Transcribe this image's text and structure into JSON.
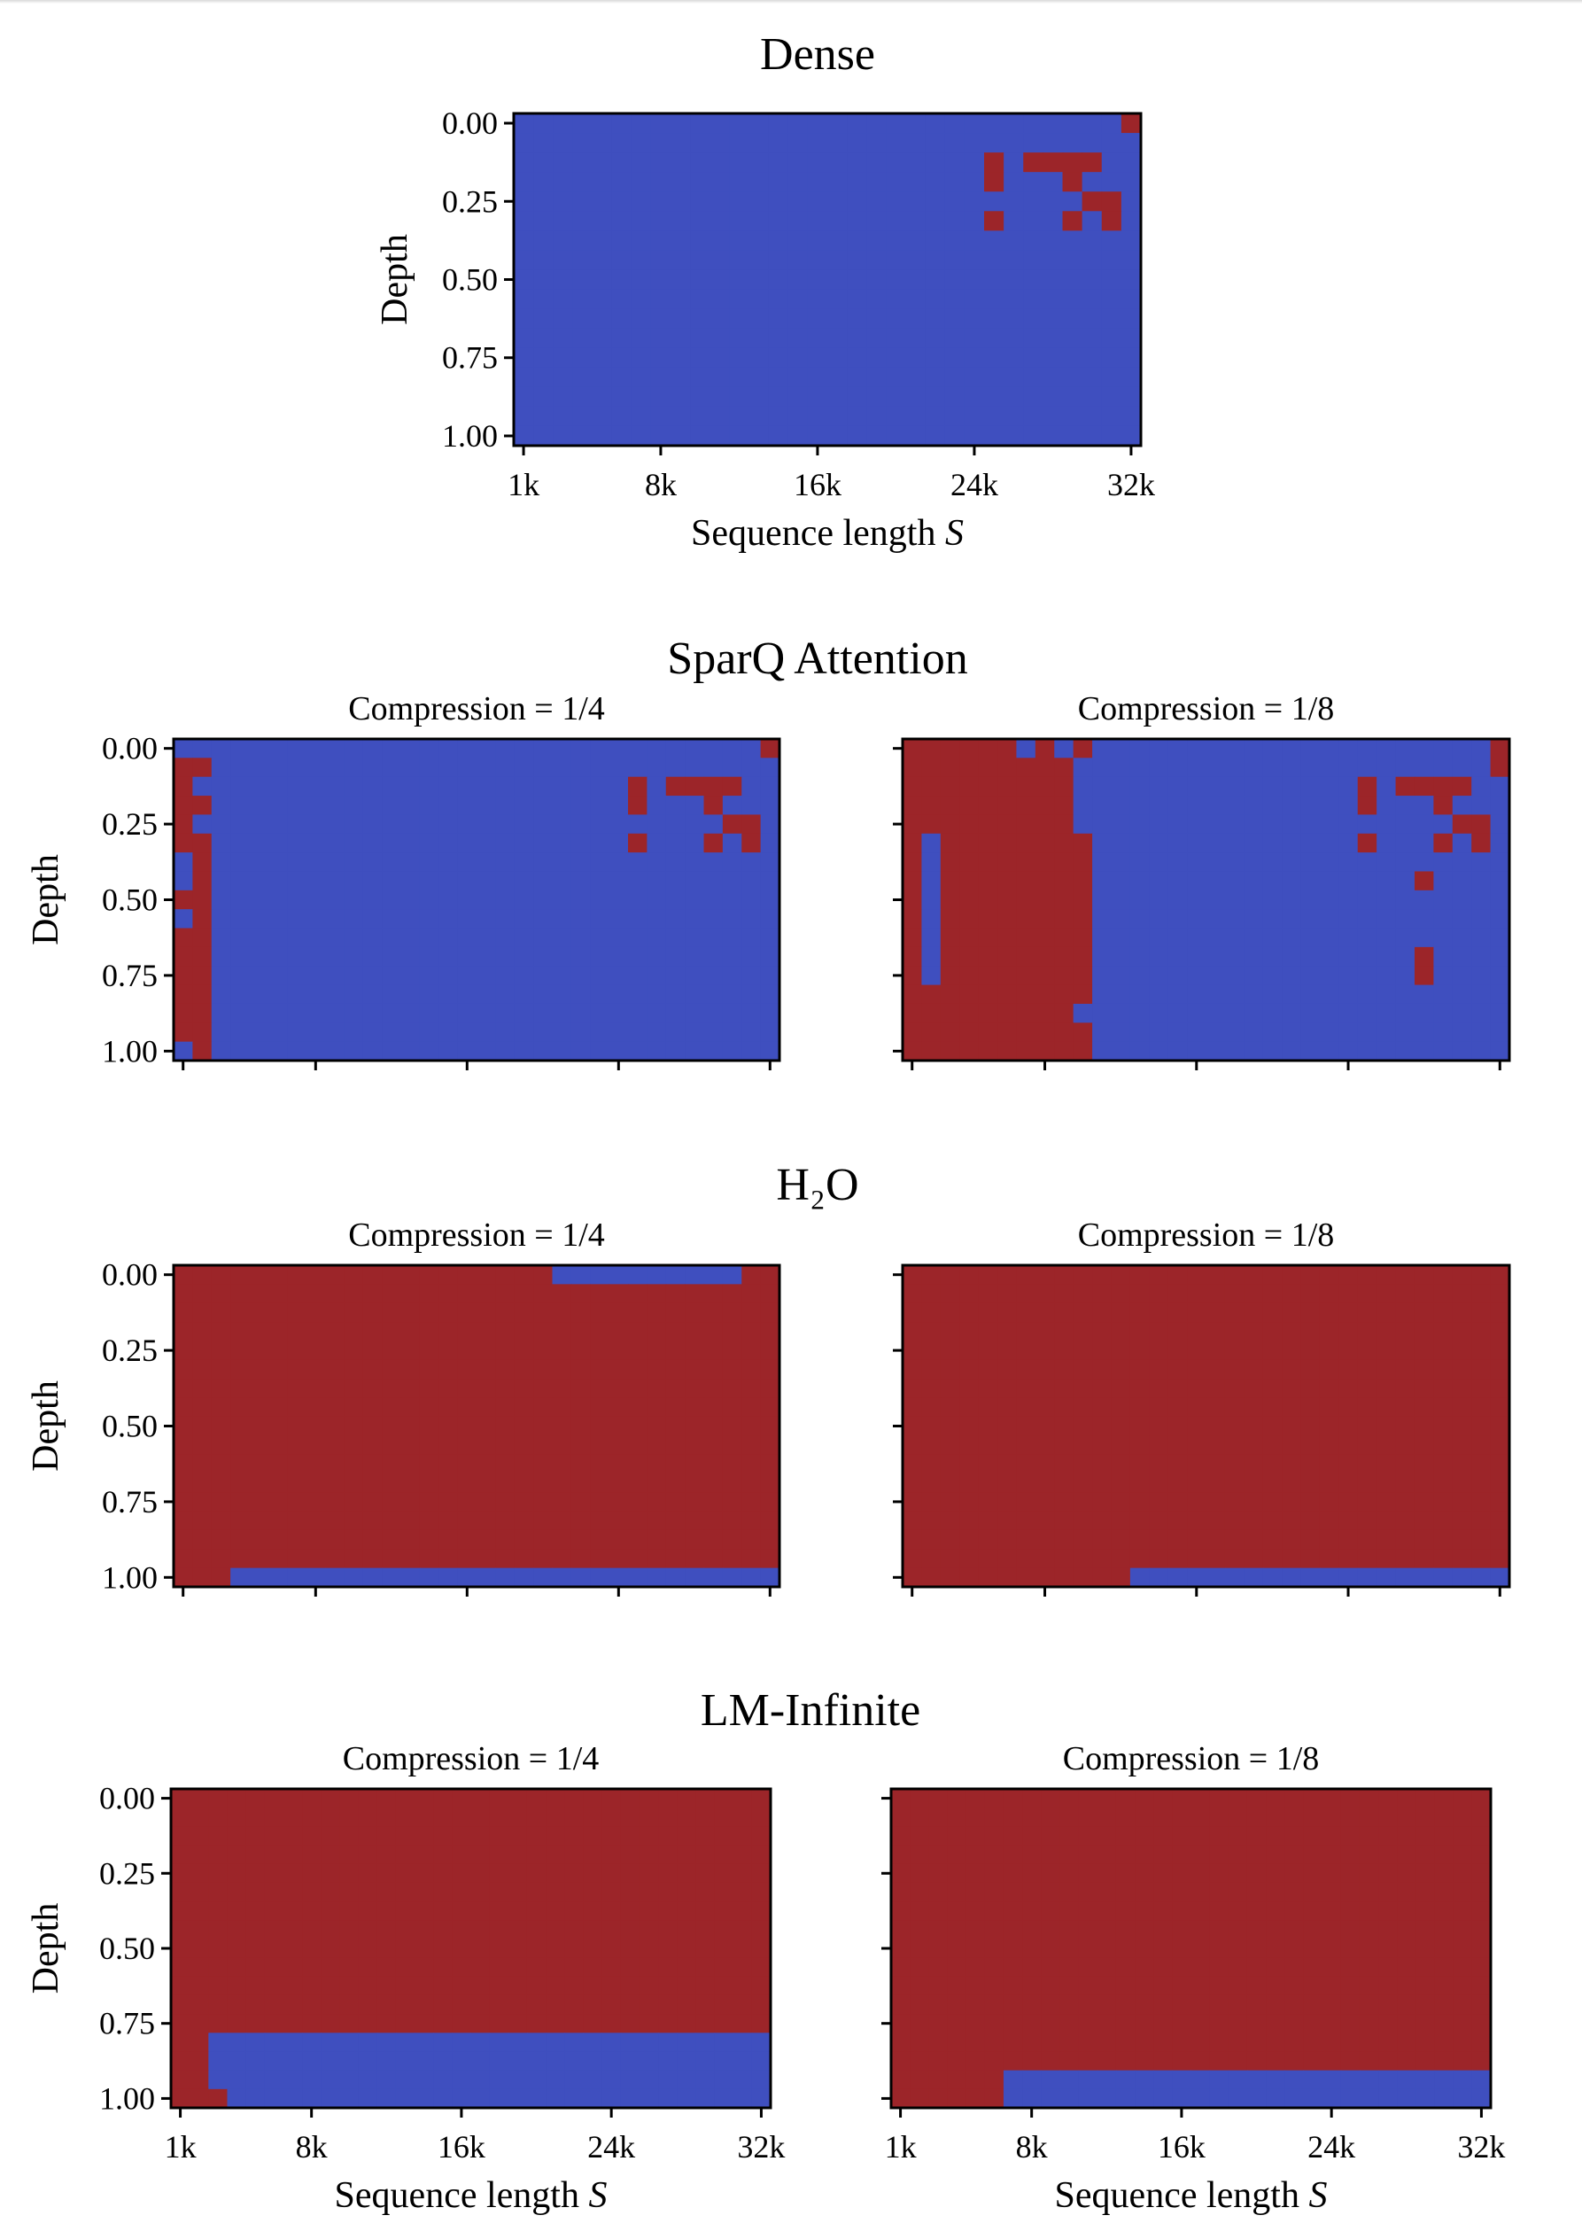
{
  "colors": {
    "pass": "#3f4fbf",
    "fail": "#9c2529"
  },
  "chart_data": [
    {
      "type": "heatmap",
      "group": "Dense",
      "title": "Dense",
      "subtitle": "",
      "xlabel": "Sequence length S",
      "ylabel": "Depth",
      "x_range": [
        "1k",
        "32k"
      ],
      "x_step": "1k",
      "y_range": [
        0,
        1
      ],
      "rows": 17,
      "cols": 32,
      "x_ticks": [
        "1k",
        "8k",
        "16k",
        "24k",
        "32k"
      ],
      "y_ticks": [
        "0.00",
        "0.25",
        "0.50",
        "0.75",
        "1.00"
      ],
      "legend": "cell value 1 = blue, 0 = red",
      "grid": [
        "11111111111111111111111111111110",
        "11111111111111111111111111111111",
        "11111111111111111111111101000011",
        "11111111111111111111111101110111",
        "11111111111111111111111111111001",
        "11111111111111111111111101110101",
        "11111111111111111111111111111111",
        "11111111111111111111111111111111",
        "11111111111111111111111111111111",
        "11111111111111111111111111111111",
        "11111111111111111111111111111111",
        "11111111111111111111111111111111",
        "11111111111111111111111111111111",
        "11111111111111111111111111111111",
        "11111111111111111111111111111111",
        "11111111111111111111111111111111",
        "11111111111111111111111111111111"
      ]
    },
    {
      "type": "heatmap",
      "group": "SparQ Attention",
      "subtitle": "Compression = 1/4",
      "ylabel": "Depth",
      "rows": 17,
      "cols": 32,
      "y_ticks": [
        "0.00",
        "0.25",
        "0.50",
        "0.75",
        "1.00"
      ],
      "grid": [
        "11111111111111111111111111111110",
        "00111111111111111111111111111111",
        "01111111111111111111111101000011",
        "00111111111111111111111101110111",
        "01111111111111111111111111111001",
        "00111111111111111111111101110101",
        "10111111111111111111111111111111",
        "10111111111111111111111111111111",
        "00111111111111111111111111111111",
        "10111111111111111111111111111111",
        "00111111111111111111111111111111",
        "00111111111111111111111111111111",
        "00111111111111111111111111111111",
        "00111111111111111111111111111111",
        "00111111111111111111111111111111",
        "00111111111111111111111111111111",
        "10111111111111111111111111111111"
      ]
    },
    {
      "type": "heatmap",
      "group": "SparQ Attention",
      "subtitle": "Compression = 1/8",
      "rows": 17,
      "cols": 32,
      "grid": [
        "00000010101111111111111111111110",
        "00000000011111111111111111111110",
        "00000000011111111111111101000011",
        "00000000011111111111111101110111",
        "00000000011111111111111111111001",
        "01000000001111111111111101110101",
        "01000000001111111111111111111111",
        "01000000001111111111111111101111",
        "01000000001111111111111111111111",
        "01000000001111111111111111111111",
        "01000000001111111111111111111111",
        "01000000001111111111111111101111",
        "01000000001111111111111111101111",
        "00000000001111111111111111111111",
        "00000000011111111111111111111111",
        "00000000001111111111111111111111",
        "00000000001111111111111111111111"
      ]
    },
    {
      "type": "heatmap",
      "group": "H₂O",
      "subtitle": "Compression = 1/4",
      "ylabel": "Depth",
      "rows": 17,
      "cols": 32,
      "y_ticks": [
        "0.00",
        "0.25",
        "0.50",
        "0.75",
        "1.00"
      ],
      "grid": [
        "00000000000000000000111111111100",
        "00000000000000000000000000000000",
        "00000000000000000000000000000000",
        "00000000000000000000000000000000",
        "00000000000000000000000000000000",
        "00000000000000000000000000000000",
        "00000000000000000000000000000000",
        "00000000000000000000000000000000",
        "00000000000000000000000000000000",
        "00000000000000000000000000000000",
        "00000000000000000000000000000000",
        "00000000000000000000000000000000",
        "00000000000000000000000000000000",
        "00000000000000000000000000000000",
        "00000000000000000000000000000000",
        "00000000000000000000000000000000",
        "00011111111111111111111111111111"
      ]
    },
    {
      "type": "heatmap",
      "group": "H₂O",
      "subtitle": "Compression = 1/8",
      "rows": 17,
      "cols": 32,
      "grid": [
        "00000000000000000000000000000000",
        "00000000000000000000000000000000",
        "00000000000000000000000000000000",
        "00000000000000000000000000000000",
        "00000000000000000000000000000000",
        "00000000000000000000000000000000",
        "00000000000000000000000000000000",
        "00000000000000000000000000000000",
        "00000000000000000000000000000000",
        "00000000000000000000000000000000",
        "00000000000000000000000000000000",
        "00000000000000000000000000000000",
        "00000000000000000000000000000000",
        "00000000000000000000000000000000",
        "00000000000000000000000000000000",
        "00000000000000000000000000000000",
        "00000000000011111111111111111111"
      ]
    },
    {
      "type": "heatmap",
      "group": "LM-Infinite",
      "subtitle": "Compression = 1/4",
      "xlabel": "Sequence length S",
      "ylabel": "Depth",
      "rows": 17,
      "cols": 32,
      "x_ticks": [
        "1k",
        "8k",
        "16k",
        "24k",
        "32k"
      ],
      "y_ticks": [
        "0.00",
        "0.25",
        "0.50",
        "0.75",
        "1.00"
      ],
      "grid": [
        "00000000000000000000000000000000",
        "00000000000000000000000000000000",
        "00000000000000000000000000000000",
        "00000000000000000000000000000000",
        "00000000000000000000000000000000",
        "00000000000000000000000000000000",
        "00000000000000000000000000000000",
        "00000000000000000000000000000000",
        "00000000000000000000000000000000",
        "00000000000000000000000000000000",
        "00000000000000000000000000000000",
        "00000000000000000000000000000000",
        "00000000000000000000000000000000",
        "00111111111111111111111111111111",
        "00111111111111111111111111111111",
        "00111111111111111111111111111111",
        "00011111111111111111111111111111"
      ]
    },
    {
      "type": "heatmap",
      "group": "LM-Infinite",
      "subtitle": "Compression = 1/8",
      "xlabel": "Sequence length S",
      "rows": 17,
      "cols": 32,
      "x_ticks": [
        "1k",
        "8k",
        "16k",
        "24k",
        "32k"
      ],
      "grid": [
        "00000000000000000000000000000000",
        "00000000000000000000000000000000",
        "00000000000000000000000000000000",
        "00000000000000000000000000000000",
        "00000000000000000000000000000000",
        "00000000000000000000000000000000",
        "00000000000000000000000000000000",
        "00000000000000000000000000000000",
        "00000000000000000000000000000000",
        "00000000000000000000000000000000",
        "00000000000000000000000000000000",
        "00000000000000000000000000000000",
        "00000000000000000000000000000000",
        "00000000000000000000000000000000",
        "00000000000000000000000000000000",
        "00000011111111111111111111111111",
        "00000011111111111111111111111111"
      ]
    }
  ],
  "titles": {
    "dense": "Dense",
    "sparq": "SparQ Attention",
    "h2o": "H₂O",
    "lm": "LM-Infinite"
  }
}
